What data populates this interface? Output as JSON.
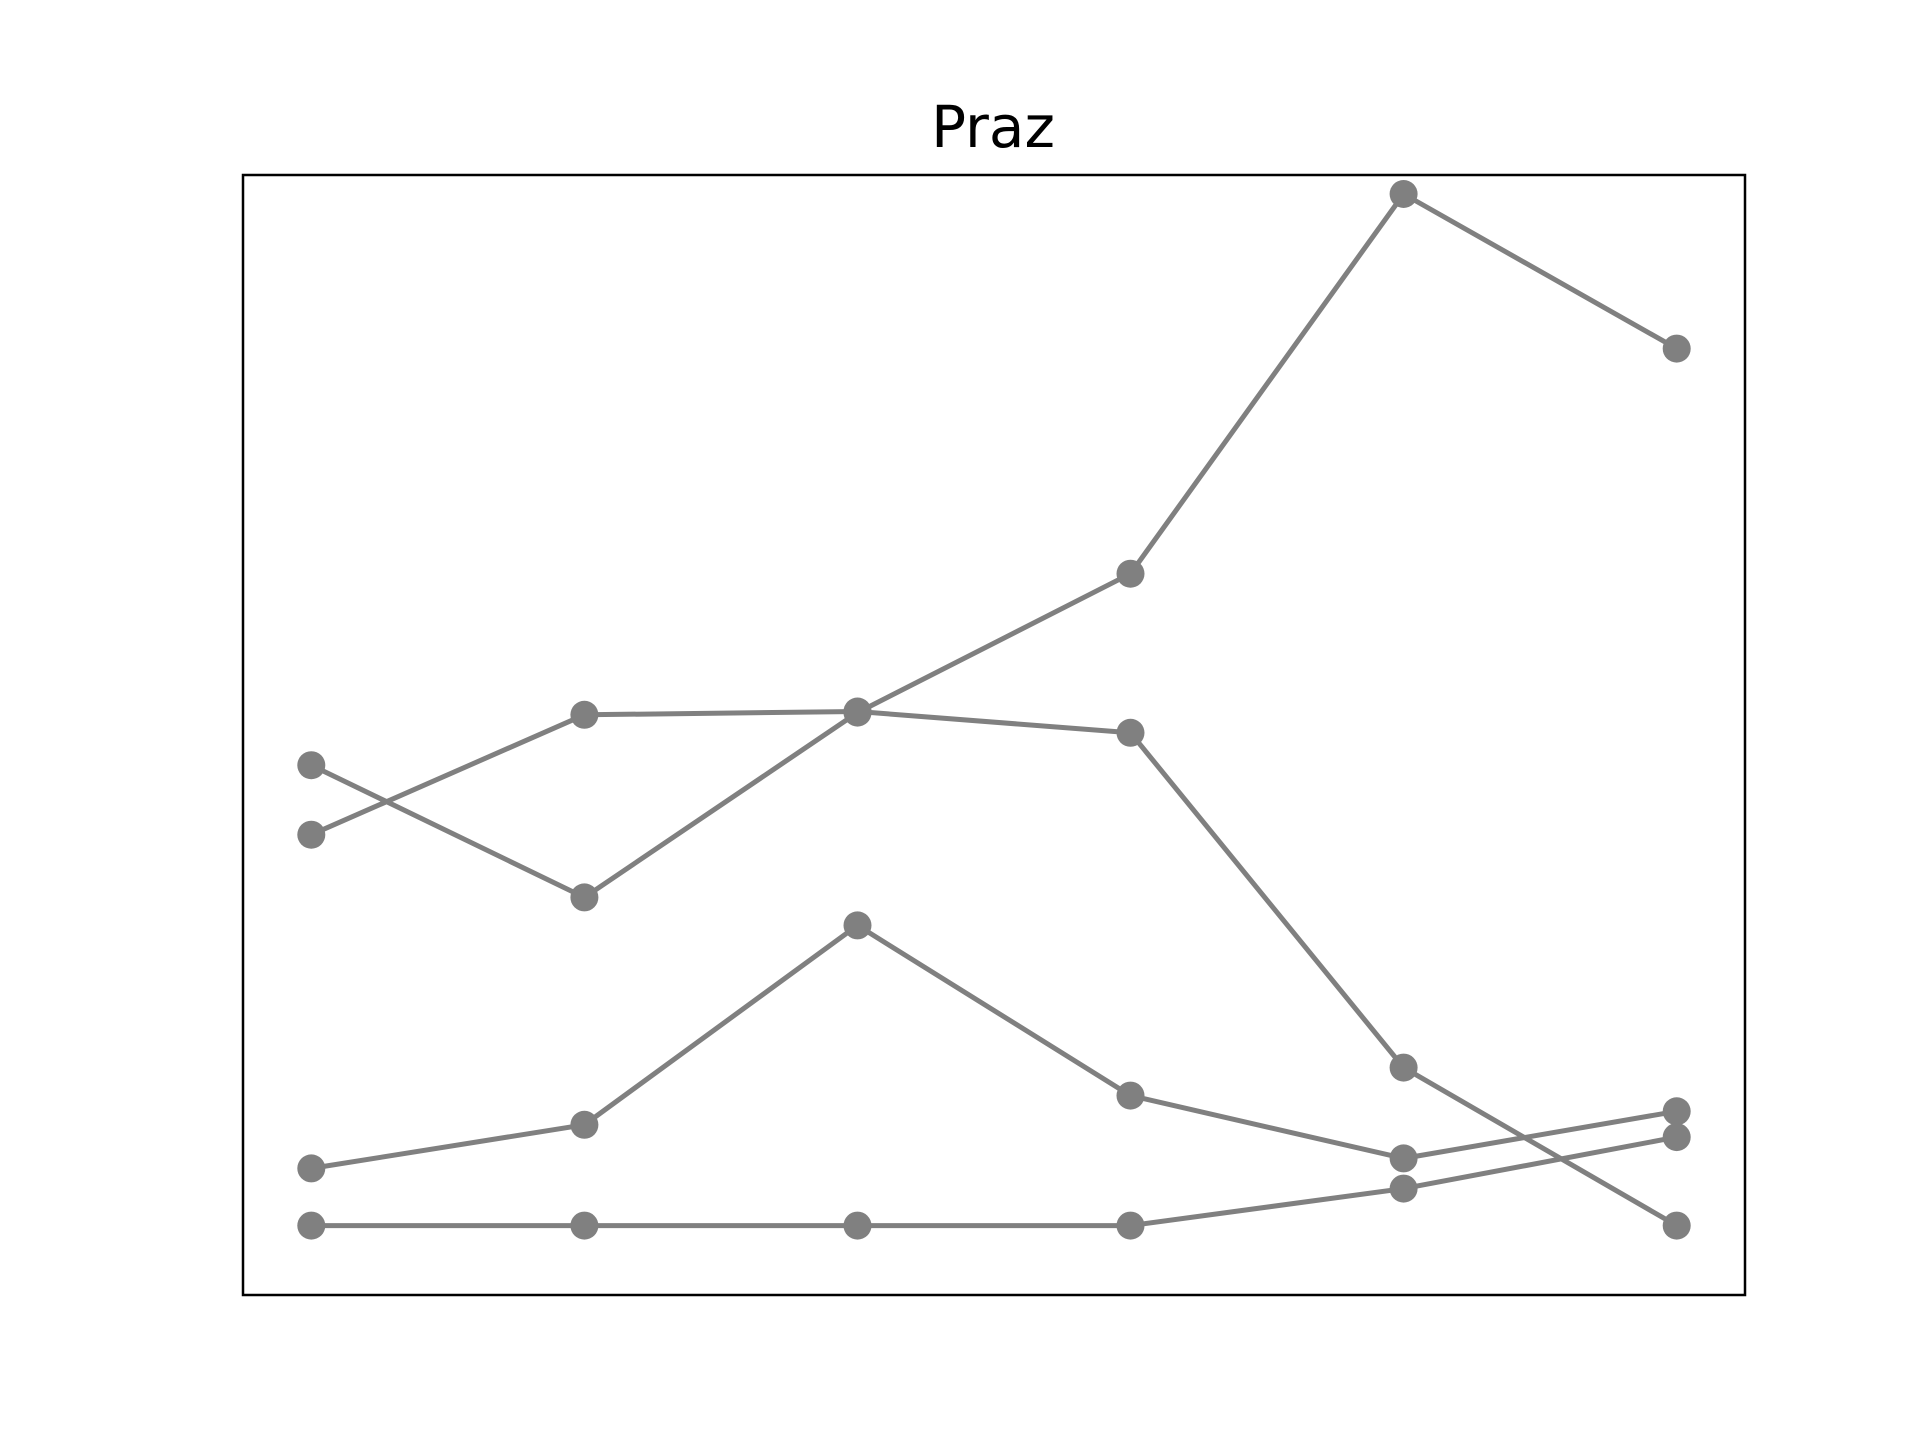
{
  "chart_data": {
    "type": "line",
    "title": "Praz",
    "xlabel": "",
    "ylabel": "",
    "x": [
      0,
      1,
      2,
      3,
      4,
      5
    ],
    "xlim": [
      -0.25,
      5.25
    ],
    "ylim": [
      0.0,
      1.0
    ],
    "grid": false,
    "legend": "none",
    "colors": {
      "series": "#808080",
      "frame": "#000000",
      "background": "#ffffff"
    },
    "series": [
      {
        "values": [
          0.473,
          0.355,
          0.52,
          0.644,
          0.983,
          0.845
        ]
      },
      {
        "values": [
          0.062,
          0.062,
          0.062,
          0.062,
          0.095,
          0.141
        ]
      },
      {
        "values": [
          0.411,
          0.518,
          0.521,
          0.502,
          0.203,
          0.062
        ]
      },
      {
        "values": [
          0.113,
          0.152,
          0.33,
          0.178,
          0.122,
          0.164
        ]
      }
    ]
  }
}
